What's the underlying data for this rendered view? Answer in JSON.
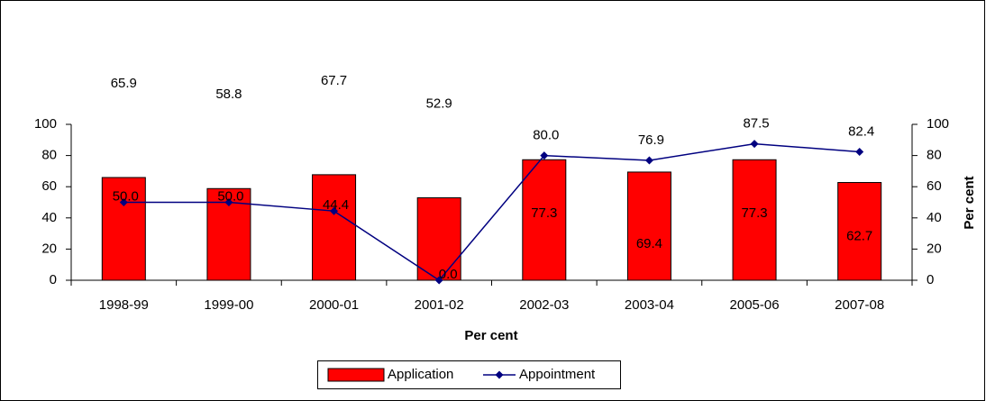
{
  "chart_data": {
    "type": "bar",
    "xlabel": "Per cent",
    "y2label": "Per cent",
    "categories": [
      "1998-99",
      "1999-00",
      "2000-01",
      "2001-02",
      "2002-03",
      "2003-04",
      "2005-06",
      "2007-08"
    ],
    "series": [
      {
        "name": "Application",
        "type": "bar",
        "color": "#ff0000",
        "axis": "y",
        "values": [
          65.9,
          58.8,
          67.7,
          52.9,
          77.3,
          69.4,
          77.3,
          62.7
        ]
      },
      {
        "name": "Appointment",
        "type": "line",
        "color": "#000080",
        "axis": "y2",
        "values": [
          50,
          50,
          44.4,
          0,
          80,
          76.9,
          87.5,
          82.4
        ],
        "value_labels": [
          "50.0",
          "50.0",
          "44.4",
          "0.0",
          "80.0",
          "76.9",
          "87.5",
          "82.4"
        ]
      }
    ],
    "ylim": [
      0,
      100
    ],
    "yticks": [
      0,
      20,
      40,
      60,
      80,
      100
    ],
    "y2lim": [
      0,
      100
    ],
    "y2ticks": [
      0,
      20,
      40,
      60,
      80,
      100
    ],
    "legend": "bottom"
  }
}
